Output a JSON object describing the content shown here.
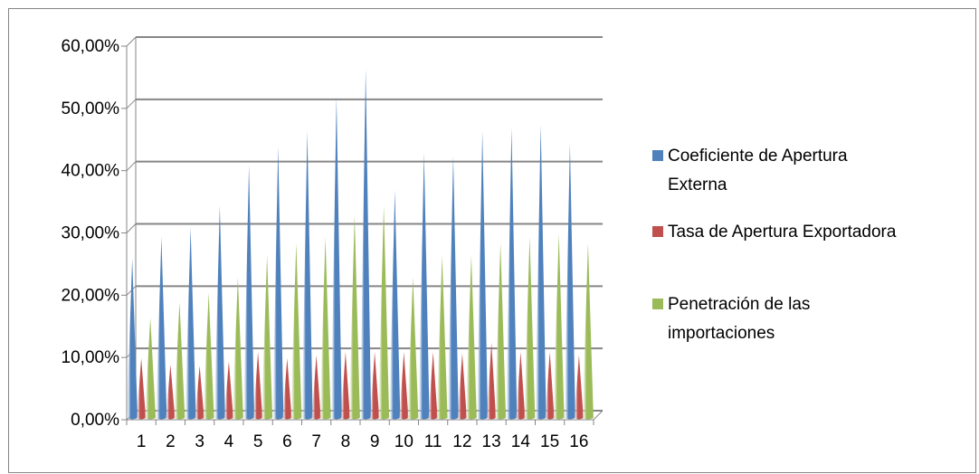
{
  "chart_data": {
    "type": "bar",
    "title": "",
    "xlabel": "",
    "ylabel": "",
    "ylim": [
      0,
      0.6
    ],
    "grid": true,
    "legend_position": "right",
    "categories": [
      "1",
      "2",
      "3",
      "4",
      "5",
      "6",
      "7",
      "8",
      "9",
      "10",
      "11",
      "12",
      "13",
      "14",
      "15",
      "16"
    ],
    "y_ticks": [
      "0,00%",
      "10,00%",
      "20,00%",
      "30,00%",
      "40,00%",
      "50,00%",
      "60,00%"
    ],
    "series": [
      {
        "name": "Coeficiente de Apertura Externa",
        "legend_lines": [
          "Coeficiente de Apertura",
          "Externa"
        ],
        "color": "#4f81bd",
        "values": [
          0.25,
          0.285,
          0.3,
          0.335,
          0.4,
          0.43,
          0.455,
          0.51,
          0.555,
          0.36,
          0.42,
          0.415,
          0.455,
          0.46,
          0.465,
          0.435
        ]
      },
      {
        "name": "Tasa de Apertura Exportadora",
        "legend_lines": [
          "Tasa de Apertura Exportadora"
        ],
        "color": "#c0504d",
        "values": [
          0.09,
          0.08,
          0.078,
          0.085,
          0.1,
          0.09,
          0.095,
          0.1,
          0.1,
          0.1,
          0.1,
          0.098,
          0.115,
          0.1,
          0.1,
          0.095
        ]
      },
      {
        "name": "Penetración de las importaciones",
        "legend_lines": [
          "Penetración de las",
          "importaciones"
        ],
        "color": "#9bbb59",
        "values": [
          0.155,
          0.18,
          0.195,
          0.22,
          0.255,
          0.275,
          0.285,
          0.32,
          0.335,
          0.22,
          0.255,
          0.255,
          0.275,
          0.285,
          0.29,
          0.275
        ]
      }
    ]
  }
}
